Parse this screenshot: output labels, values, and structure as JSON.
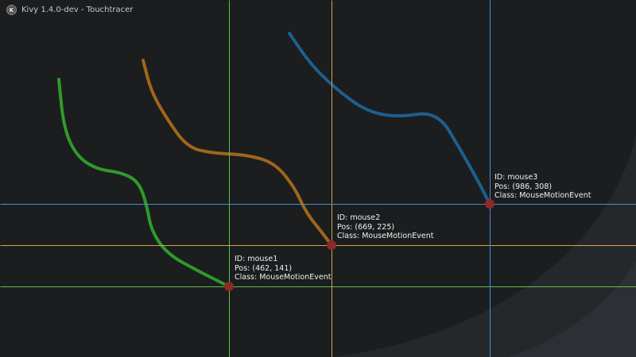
{
  "window": {
    "title": "Kivy 1.4.0-dev - Touchtracer",
    "icon": "kivy-logo-icon"
  },
  "colors": {
    "background": "#1b1d1f",
    "touch_point": "#8b2a26"
  },
  "touches": [
    {
      "id_text": "ID: mouse1",
      "pos_text": "Pos: (462, 141)",
      "class_text": "Class: MouseMotionEvent",
      "color": "#2f9a2a",
      "line_color": "#5fbf4a"
    },
    {
      "id_text": "ID: mouse2",
      "pos_text": "Pos: (669, 225)",
      "class_text": "Class: MouseMotionEvent",
      "color": "#a0661a",
      "line_color": "#d9a050"
    },
    {
      "id_text": "ID: mouse3",
      "pos_text": "Pos: (986, 308)",
      "class_text": "Class: MouseMotionEvent",
      "color": "#1e5f8c",
      "line_color": "#4a90d0"
    }
  ]
}
